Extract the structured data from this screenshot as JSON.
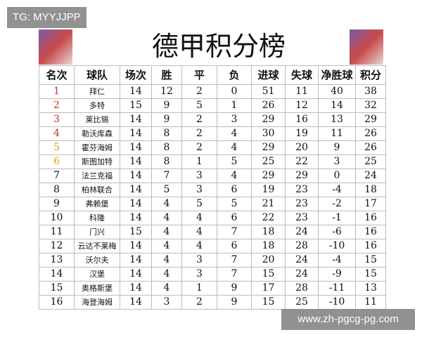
{
  "watermark_top": "TG: MYYJJPP",
  "watermark_bottom": "www.zh-pgcg-pg.com",
  "header": {
    "title": "德甲积分榜"
  },
  "table": {
    "columns": [
      "名次",
      "球队",
      "场次",
      "胜",
      "平",
      "负",
      "进球",
      "失球",
      "净胜球",
      "积分"
    ],
    "rows": [
      [
        1,
        "拜仁",
        14,
        12,
        2,
        0,
        51,
        11,
        40,
        38
      ],
      [
        2,
        "多特",
        15,
        9,
        5,
        1,
        26,
        12,
        14,
        32
      ],
      [
        3,
        "莱比锡",
        14,
        9,
        2,
        3,
        29,
        16,
        13,
        29
      ],
      [
        4,
        "勒沃库森",
        14,
        8,
        2,
        4,
        30,
        19,
        11,
        26
      ],
      [
        5,
        "霍芬海姆",
        14,
        8,
        2,
        4,
        29,
        20,
        9,
        26
      ],
      [
        6,
        "斯图加特",
        14,
        8,
        1,
        5,
        25,
        22,
        3,
        25
      ],
      [
        7,
        "法兰克福",
        14,
        7,
        3,
        4,
        29,
        29,
        0,
        24
      ],
      [
        8,
        "柏林联合",
        14,
        5,
        3,
        6,
        19,
        23,
        -4,
        18
      ],
      [
        9,
        "弗赖堡",
        14,
        4,
        5,
        5,
        21,
        23,
        -2,
        17
      ],
      [
        10,
        "科隆",
        14,
        4,
        4,
        6,
        22,
        23,
        -1,
        16
      ],
      [
        11,
        "门兴",
        15,
        4,
        4,
        7,
        18,
        24,
        -6,
        16
      ],
      [
        12,
        "云达不莱梅",
        14,
        4,
        4,
        6,
        18,
        28,
        -10,
        16
      ],
      [
        13,
        "沃尔夫",
        14,
        4,
        3,
        7,
        20,
        24,
        -4,
        15
      ],
      [
        14,
        "汉堡",
        14,
        4,
        3,
        7,
        15,
        24,
        -9,
        15
      ],
      [
        15,
        "奥格斯堡",
        14,
        4,
        1,
        9,
        17,
        28,
        -11,
        13
      ],
      [
        16,
        "海登海姆",
        14,
        3,
        2,
        9,
        15,
        25,
        -10,
        11
      ]
    ]
  }
}
